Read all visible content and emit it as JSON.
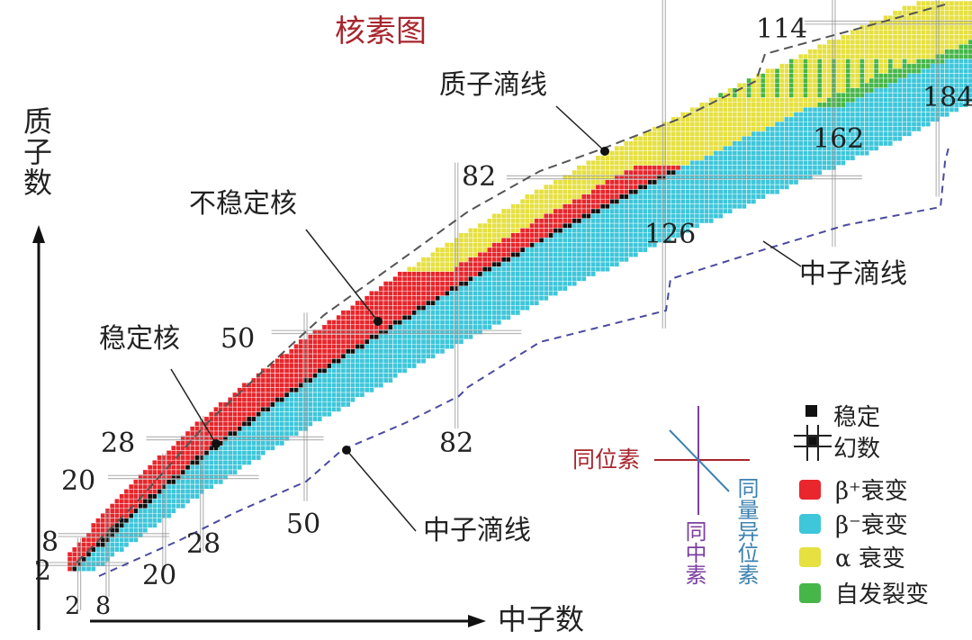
{
  "title": "核素图",
  "axes": {
    "y_label": "质子数",
    "x_label": "中子数"
  },
  "annotations": {
    "proton_dripline": "质子滴线",
    "neutron_dripline_upper": "中子滴线",
    "neutron_dripline_lower": "中子滴线",
    "unstable": "不稳定核",
    "stable": "稳定核"
  },
  "magic_numbers": {
    "proton": [
      "2",
      "8",
      "20",
      "28",
      "50",
      "82",
      "114"
    ],
    "neutron": [
      "2",
      "8",
      "20",
      "28",
      "50",
      "82",
      "126",
      "162",
      "184"
    ]
  },
  "isotope_cross": {
    "isotope": "同位素",
    "isotone": "同中素",
    "isobar": "同量异位素"
  },
  "legend": [
    {
      "label": "稳定",
      "color": "#111111"
    },
    {
      "label": "幻数",
      "color": "#111111"
    },
    {
      "label": "β⁺衰变",
      "color": "#e8262b"
    },
    {
      "label": "β⁻衰变",
      "color": "#3ec6da"
    },
    {
      "label": "α 衰变",
      "color": "#e6e040"
    },
    {
      "label": "自发裂变",
      "color": "#46b649"
    }
  ],
  "colors": {
    "title": "#a8252d",
    "isotope": "#a8252d",
    "isotone": "#7b3fa0",
    "isobar": "#3c82b0",
    "dripline": "#555555",
    "neutron_dripline": "#4a4aa0"
  }
}
